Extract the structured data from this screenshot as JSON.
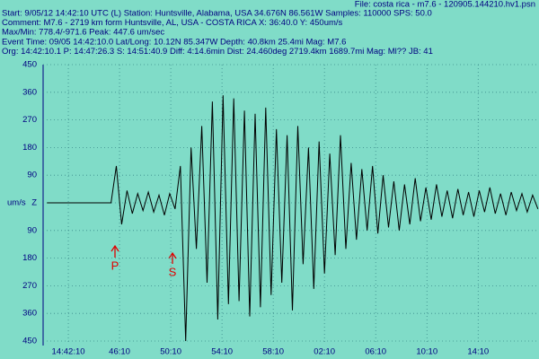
{
  "header": {
    "file": "File: costa rica - m7.6 - 120905.144210.hv1.psn",
    "lines": [
      "Start: 9/05/12 14:42:10 UTC (L) Station: Huntsville, Alabama, USA 34.676N 86.561W Samples: 110000  SPS: 50.0",
      "Comment: M7.6 - 2719 km form Huntsville, AL, USA - COSTA RICA  X: 36:40.0 Y: 450um/s",
      "Max/Min: 778.4/-971.6  Peak: 447.6 um/sec",
      "Event Time: 09/05 14:42:10.0 Lat/Long: 10.12N 85.347W Depth: 40.8km 25.4mi Mag: M7.6",
      "Org: 14:42:10.1 P: 14:47:26.3 S: 14:51:40.9 Diff: 4:14.6min Dist: 24.460deg 2719.4km 1689.7mi  Mag: Ml?? JB: 41"
    ]
  },
  "chart_data": {
    "type": "line",
    "color": "#000000",
    "grid": true,
    "y_unit": "um/s",
    "annotations": [
      "P",
      "S"
    ],
    "xlim": [
      -118,
      2205
    ],
    "ylim": [
      -450,
      450
    ],
    "xticks": [
      {
        "value": 0,
        "label": "14:42:10"
      },
      {
        "value": 240,
        "label": "46:10"
      },
      {
        "value": 480,
        "label": "50:10"
      },
      {
        "value": 720,
        "label": "54:10"
      },
      {
        "value": 960,
        "label": "58:10"
      },
      {
        "value": 1200,
        "label": "02:10"
      },
      {
        "value": 1440,
        "label": "06:10"
      },
      {
        "value": 1680,
        "label": "10:10"
      },
      {
        "value": 1920,
        "label": "14:10"
      }
    ],
    "yticks": [
      450,
      360,
      270,
      180,
      90,
      {
        "value": 0,
        "label": "Z"
      },
      {
        "value": -90,
        "label": "90"
      },
      {
        "value": -180,
        "label": "180"
      },
      {
        "value": -270,
        "label": "270"
      },
      {
        "value": -360,
        "label": "360"
      },
      {
        "value": -450,
        "label": "450"
      }
    ],
    "x": [
      -100,
      -75,
      -50,
      -25,
      0,
      25,
      50,
      75,
      100,
      125,
      150,
      175,
      200,
      225,
      250,
      275,
      300,
      325,
      350,
      375,
      400,
      425,
      450,
      475,
      500,
      525,
      550,
      575,
      600,
      625,
      650,
      675,
      700,
      725,
      750,
      775,
      800,
      825,
      850,
      875,
      900,
      925,
      950,
      975,
      1000,
      1025,
      1050,
      1075,
      1100,
      1125,
      1150,
      1175,
      1200,
      1225,
      1250,
      1275,
      1300,
      1325,
      1350,
      1375,
      1400,
      1425,
      1450,
      1475,
      1500,
      1525,
      1550,
      1575,
      1600,
      1625,
      1650,
      1675,
      1700,
      1725,
      1750,
      1775,
      1800,
      1825,
      1850,
      1875,
      1900,
      1925,
      1950,
      1975,
      2000,
      2025,
      2050,
      2075,
      2100,
      2125,
      2150,
      2175,
      2200
    ],
    "values": [
      0,
      0,
      0,
      0,
      0,
      0,
      0,
      0,
      0,
      0,
      0,
      0,
      0,
      120,
      -70,
      40,
      -35,
      30,
      -25,
      35,
      -30,
      25,
      -40,
      30,
      -20,
      120,
      -450,
      180,
      -150,
      250,
      -260,
      330,
      -380,
      350,
      -330,
      340,
      -320,
      300,
      -370,
      290,
      -340,
      310,
      -300,
      240,
      -260,
      220,
      -350,
      250,
      -200,
      180,
      -280,
      200,
      -230,
      160,
      -170,
      220,
      -150,
      130,
      -120,
      110,
      -90,
      120,
      -100,
      90,
      -80,
      70,
      -90,
      60,
      -70,
      80,
      -60,
      50,
      -55,
      60,
      -45,
      40,
      -50,
      45,
      -40,
      35,
      -45,
      40,
      -30,
      50,
      -35,
      30,
      -40,
      35,
      -25,
      30,
      -30,
      25,
      -20
    ]
  }
}
